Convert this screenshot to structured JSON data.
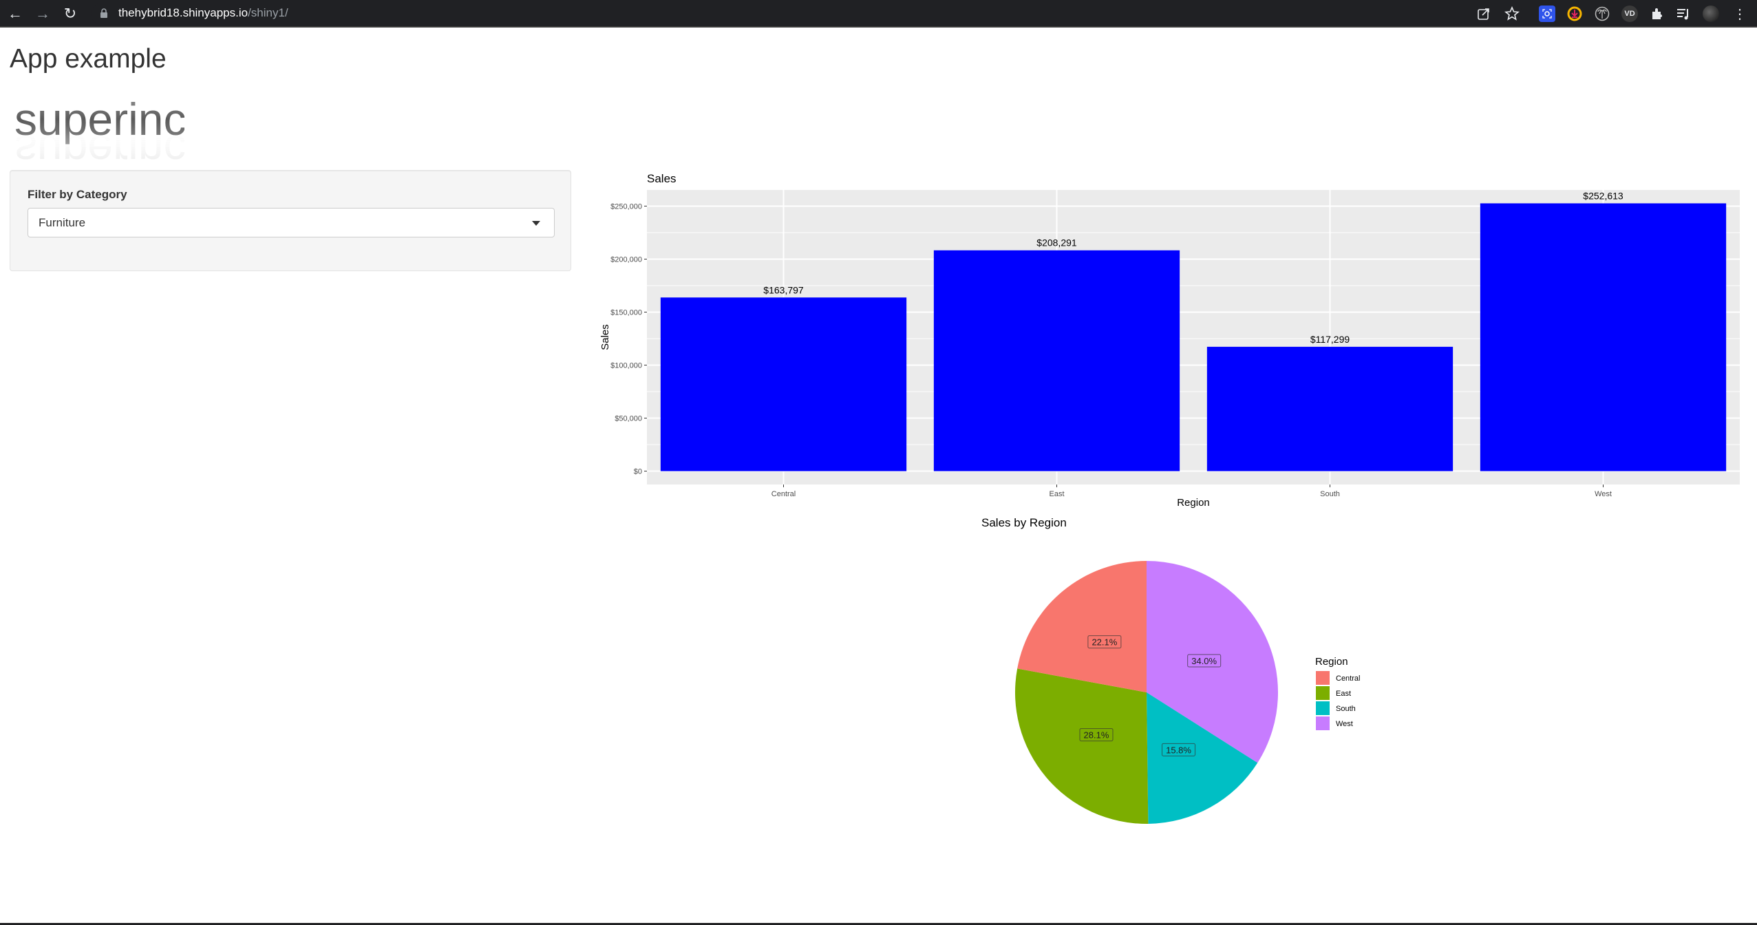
{
  "browser": {
    "url_host": "thehybrid18.shinyapps.io",
    "url_path": "/shiny1/",
    "nav": {
      "back": "←",
      "forward": "→",
      "reload": "↻"
    },
    "icons": [
      "share-icon",
      "bookmark-star-icon",
      "screen-capture-extension-icon",
      "download-extension-icon",
      "palm-extension-icon",
      "vd-extension-icon",
      "extensions-puzzle-icon",
      "media-playlist-icon",
      "profile-avatar",
      "menu-kebab-icon"
    ],
    "vd_label": "VD",
    "menu_glyph": "⋮"
  },
  "page": {
    "title": "App example",
    "logo_text": "superinc"
  },
  "sidebar": {
    "filter_label": "Filter by Category",
    "selected_category": "Furniture"
  },
  "colors": {
    "bar_fill": "#0000FF",
    "panel_bg": "#EBEBEB",
    "grid": "#FFFFFF",
    "central": "#F8766D",
    "east": "#7CAE00",
    "south": "#00BFC4",
    "west": "#C77CFF"
  },
  "chart_data": [
    {
      "type": "bar",
      "title": "Sales",
      "xlabel": "Region",
      "ylabel": "Sales",
      "categories": [
        "Central",
        "East",
        "South",
        "West"
      ],
      "values": [
        163797,
        208291,
        117299,
        252613
      ],
      "value_labels": [
        "$163,797",
        "$208,291",
        "$117,299",
        "$252,613"
      ],
      "yticks": [
        0,
        50000,
        100000,
        150000,
        200000,
        250000
      ],
      "ytick_labels": [
        "$0",
        "$50,000",
        "$100,000",
        "$150,000",
        "$200,000",
        "$250,000"
      ],
      "ylim": [
        -12630,
        265244
      ],
      "grid": true,
      "bar_color": "#0000FF"
    },
    {
      "type": "pie",
      "title": "Sales by Region",
      "legend_title": "Region",
      "legend_position": "right",
      "categories": [
        "Central",
        "East",
        "South",
        "West"
      ],
      "values": [
        22.1,
        28.1,
        15.8,
        34.0
      ],
      "value_labels": [
        "22.1%",
        "28.1%",
        "15.8%",
        "34.0%"
      ],
      "colors": [
        "#F8766D",
        "#7CAE00",
        "#00BFC4",
        "#C77CFF"
      ]
    }
  ]
}
